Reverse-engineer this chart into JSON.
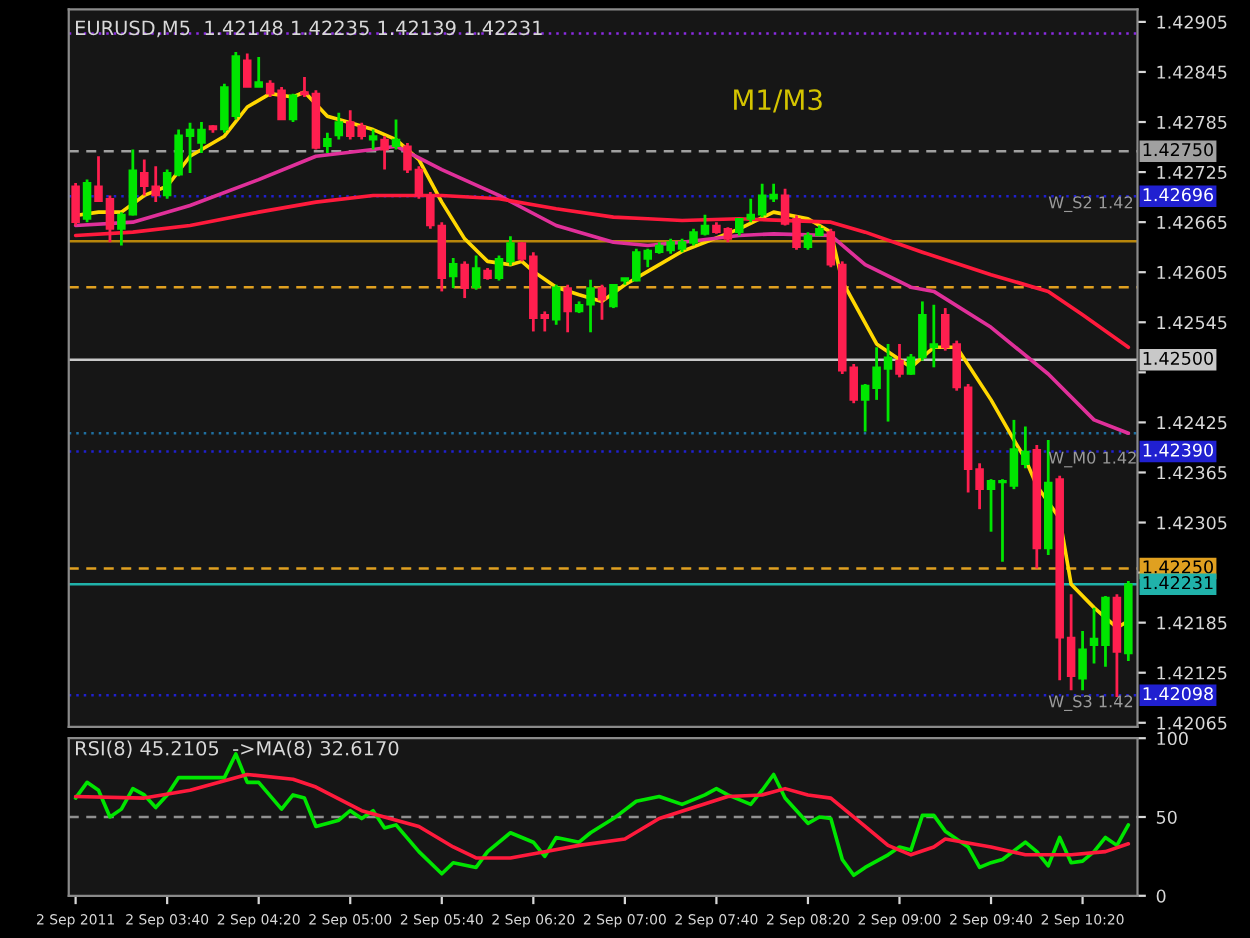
{
  "chart_data": [
    {
      "type": "candlestick",
      "title": "EURUSD,M5  1.42148 1.42235 1.42139 1.42231",
      "x": [
        "2011-09-02T03:00",
        "2011-09-02T03:05",
        "2011-09-02T03:10",
        "2011-09-02T03:15",
        "2011-09-02T03:20",
        "2011-09-02T03:25",
        "2011-09-02T03:30",
        "2011-09-02T03:35",
        "2011-09-02T03:40",
        "2011-09-02T03:45",
        "2011-09-02T03:50",
        "2011-09-02T03:55",
        "2011-09-02T04:00",
        "2011-09-02T04:05",
        "2011-09-02T04:10",
        "2011-09-02T04:15",
        "2011-09-02T04:20",
        "2011-09-02T04:25",
        "2011-09-02T04:30",
        "2011-09-02T04:35",
        "2011-09-02T04:40",
        "2011-09-02T04:45",
        "2011-09-02T04:50",
        "2011-09-02T04:55",
        "2011-09-02T05:00",
        "2011-09-02T05:05",
        "2011-09-02T05:10",
        "2011-09-02T05:15",
        "2011-09-02T05:20",
        "2011-09-02T05:25",
        "2011-09-02T05:30",
        "2011-09-02T05:35",
        "2011-09-02T05:40",
        "2011-09-02T05:45",
        "2011-09-02T05:50",
        "2011-09-02T05:55",
        "2011-09-02T06:00",
        "2011-09-02T06:05",
        "2011-09-02T06:10",
        "2011-09-02T06:15",
        "2011-09-02T06:20",
        "2011-09-02T06:25",
        "2011-09-02T06:30",
        "2011-09-02T06:35",
        "2011-09-02T06:40",
        "2011-09-02T06:45",
        "2011-09-02T06:50",
        "2011-09-02T06:55",
        "2011-09-02T07:00",
        "2011-09-02T07:05",
        "2011-09-02T07:10",
        "2011-09-02T07:15",
        "2011-09-02T07:20",
        "2011-09-02T07:25",
        "2011-09-02T07:30",
        "2011-09-02T07:35",
        "2011-09-02T07:40",
        "2011-09-02T07:45",
        "2011-09-02T07:50",
        "2011-09-02T07:55",
        "2011-09-02T08:00",
        "2011-09-02T08:05",
        "2011-09-02T08:10",
        "2011-09-02T08:15",
        "2011-09-02T08:20",
        "2011-09-02T08:25",
        "2011-09-02T08:30",
        "2011-09-02T08:35",
        "2011-09-02T08:40",
        "2011-09-02T08:45",
        "2011-09-02T08:50",
        "2011-09-02T08:55",
        "2011-09-02T09:00",
        "2011-09-02T09:05",
        "2011-09-02T09:10",
        "2011-09-02T09:15",
        "2011-09-02T09:20",
        "2011-09-02T09:25",
        "2011-09-02T09:30",
        "2011-09-02T09:35",
        "2011-09-02T09:40",
        "2011-09-02T09:45",
        "2011-09-02T09:50",
        "2011-09-02T09:55",
        "2011-09-02T10:00",
        "2011-09-02T10:05",
        "2011-09-02T10:10",
        "2011-09-02T10:15",
        "2011-09-02T10:20",
        "2011-09-02T10:25",
        "2011-09-02T10:30",
        "2011-09-02T10:35",
        "2011-09-02T10:40"
      ],
      "ohlc": [
        [
          1.42708,
          1.42712,
          1.42661,
          1.42665
        ],
        [
          1.42669,
          1.42716,
          1.42665,
          1.42712
        ],
        [
          1.42708,
          1.42744,
          1.4269,
          1.4269
        ],
        [
          1.42693,
          1.42697,
          1.42641,
          1.42657
        ],
        [
          1.42657,
          1.42677,
          1.42637,
          1.42674
        ],
        [
          1.42674,
          1.42752,
          1.42673,
          1.42727
        ],
        [
          1.42724,
          1.4274,
          1.42697,
          1.42708
        ],
        [
          1.42708,
          1.42732,
          1.42689,
          1.42697
        ],
        [
          1.42697,
          1.42728,
          1.42693,
          1.42724
        ],
        [
          1.42722,
          1.42776,
          1.4272,
          1.42769
        ],
        [
          1.42768,
          1.42784,
          1.42724,
          1.42776
        ],
        [
          1.4276,
          1.42785,
          1.42748,
          1.42776
        ],
        [
          1.4278,
          1.42781,
          1.42772,
          1.42776
        ],
        [
          1.42776,
          1.42831,
          1.42772,
          1.42827
        ],
        [
          1.42792,
          1.42869,
          1.42788,
          1.42864
        ],
        [
          1.42859,
          1.42867,
          1.42827,
          1.42827
        ],
        [
          1.42827,
          1.42863,
          1.42827,
          1.42833
        ],
        [
          1.42831,
          1.42835,
          1.42815,
          1.42819
        ],
        [
          1.42823,
          1.42827,
          1.42788,
          1.42788
        ],
        [
          1.42788,
          1.42819,
          1.42785,
          1.42817
        ],
        [
          1.42821,
          1.42839,
          1.42815,
          1.42818
        ],
        [
          1.42819,
          1.42823,
          1.42752,
          1.42754
        ],
        [
          1.42756,
          1.42772,
          1.42748,
          1.42765
        ],
        [
          1.42769,
          1.42796,
          1.42764,
          1.42785
        ],
        [
          1.42785,
          1.42799,
          1.42764,
          1.42768
        ],
        [
          1.4278,
          1.42784,
          1.42764,
          1.42768
        ],
        [
          1.42764,
          1.42776,
          1.42752,
          1.42768
        ],
        [
          1.42764,
          1.42768,
          1.42728,
          1.42752
        ],
        [
          1.42756,
          1.42788,
          1.42752,
          1.42764
        ],
        [
          1.42756,
          1.4276,
          1.42724,
          1.42728
        ],
        [
          1.42728,
          1.42732,
          1.42693,
          1.42697
        ],
        [
          1.42697,
          1.42701,
          1.42657,
          1.42661
        ],
        [
          1.42661,
          1.42665,
          1.42582,
          1.42598
        ],
        [
          1.426,
          1.42622,
          1.42586,
          1.42615
        ],
        [
          1.42614,
          1.42618,
          1.42574,
          1.42586
        ],
        [
          1.42587,
          1.42625,
          1.42584,
          1.4261
        ],
        [
          1.42607,
          1.4261,
          1.42596,
          1.42598
        ],
        [
          1.42598,
          1.42625,
          1.42595,
          1.42621
        ],
        [
          1.42618,
          1.42648,
          1.42613,
          1.4264
        ],
        [
          1.4264,
          1.42641,
          1.42618,
          1.42621
        ],
        [
          1.42624,
          1.42629,
          1.42534,
          1.4255
        ],
        [
          1.42554,
          1.42558,
          1.42534,
          1.4255
        ],
        [
          1.42548,
          1.4259,
          1.42542,
          1.42587
        ],
        [
          1.42586,
          1.4259,
          1.42533,
          1.42558
        ],
        [
          1.42558,
          1.4257,
          1.42556,
          1.42566
        ],
        [
          1.42566,
          1.42596,
          1.42533,
          1.42586
        ],
        [
          1.42586,
          1.4259,
          1.42548,
          1.42572
        ],
        [
          1.42564,
          1.4259,
          1.42562,
          1.4259
        ],
        [
          1.42595,
          1.42598,
          1.4259,
          1.42598
        ],
        [
          1.42595,
          1.42633,
          1.42594,
          1.42629
        ],
        [
          1.42621,
          1.42633,
          1.42611,
          1.42631
        ],
        [
          1.42629,
          1.42641,
          1.42627,
          1.42637
        ],
        [
          1.42631,
          1.42645,
          1.42627,
          1.42641
        ],
        [
          1.42633,
          1.42645,
          1.42629,
          1.42641
        ],
        [
          1.4264,
          1.42657,
          1.42637,
          1.42653
        ],
        [
          1.42651,
          1.42674,
          1.42649,
          1.42661
        ],
        [
          1.42661,
          1.42665,
          1.42651,
          1.42653
        ],
        [
          1.42657,
          1.42659,
          1.42641,
          1.42645
        ],
        [
          1.42653,
          1.42669,
          1.42649,
          1.42669
        ],
        [
          1.42669,
          1.42693,
          1.42665,
          1.42674
        ],
        [
          1.42674,
          1.42711,
          1.42671,
          1.42697
        ],
        [
          1.42693,
          1.42711,
          1.42689,
          1.42698
        ],
        [
          1.42697,
          1.42705,
          1.42661,
          1.42663
        ],
        [
          1.42669,
          1.42673,
          1.42632,
          1.42635
        ],
        [
          1.42635,
          1.42653,
          1.42632,
          1.42649
        ],
        [
          1.42649,
          1.42661,
          1.42648,
          1.42657
        ],
        [
          1.42653,
          1.42657,
          1.42611,
          1.42614
        ],
        [
          1.42614,
          1.42618,
          1.42483,
          1.42487
        ],
        [
          1.42491,
          1.42495,
          1.42448,
          1.42452
        ],
        [
          1.42452,
          1.42471,
          1.42414,
          1.42469
        ],
        [
          1.42466,
          1.42515,
          1.42452,
          1.42491
        ],
        [
          1.42489,
          1.42519,
          1.42426,
          1.42503
        ],
        [
          1.42499,
          1.42519,
          1.42479,
          1.42483
        ],
        [
          1.42483,
          1.42507,
          1.42482,
          1.42503
        ],
        [
          1.42503,
          1.4257,
          1.42499,
          1.42554
        ],
        [
          1.42515,
          1.42566,
          1.42491,
          1.42519
        ],
        [
          1.42554,
          1.42562,
          1.42511,
          1.42515
        ],
        [
          1.42519,
          1.42523,
          1.42463,
          1.42467
        ],
        [
          1.42467,
          1.42471,
          1.42341,
          1.42369
        ],
        [
          1.42369,
          1.42376,
          1.42321,
          1.42345
        ],
        [
          1.42345,
          1.42357,
          1.42294,
          1.42355
        ],
        [
          1.42353,
          1.42357,
          1.42258,
          1.42355
        ],
        [
          1.42349,
          1.42428,
          1.42345,
          1.42393
        ],
        [
          1.42375,
          1.4242,
          1.4237,
          1.4239
        ],
        [
          1.42392,
          1.42398,
          1.4225,
          1.42274
        ],
        [
          1.42274,
          1.42404,
          1.42266,
          1.42353
        ],
        [
          1.42357,
          1.42361,
          1.42116,
          1.42167
        ],
        [
          1.42167,
          1.42219,
          1.42104,
          1.42121
        ],
        [
          1.42118,
          1.42175,
          1.42104,
          1.42153
        ],
        [
          1.42158,
          1.42203,
          1.42136,
          1.42166
        ],
        [
          1.42158,
          1.42217,
          1.42132,
          1.42215
        ],
        [
          1.42215,
          1.42219,
          1.42096,
          1.4215
        ],
        [
          1.42148,
          1.42235,
          1.42139,
          1.42231
        ]
      ],
      "colors": [
        "#ff1f4f",
        "#00e600",
        "#ff1f4f",
        "#ff1f4f",
        "#00e600",
        "#00e600",
        "#ff1f4f",
        "#ff1f4f",
        "#00e600",
        "#00e600",
        "#00e600",
        "#00e600",
        "#ff1f4f",
        "#00e600",
        "#00e600",
        "#ff1f4f",
        "#00e600",
        "#ff1f4f",
        "#ff1f4f",
        "#00e600",
        "#ff1f4f",
        "#ff1f4f",
        "#00e600",
        "#00e600",
        "#ff1f4f",
        "#ff1f4f",
        "#00e600",
        "#ff1f4f",
        "#00e600",
        "#ff1f4f",
        "#ff1f4f",
        "#ff1f4f",
        "#ff1f4f",
        "#00e600",
        "#ff1f4f",
        "#00e600",
        "#ff1f4f",
        "#00e600",
        "#00e600",
        "#ff1f4f",
        "#ff1f4f",
        "#ff1f4f",
        "#00e600",
        "#ff1f4f",
        "#00e600",
        "#00e600",
        "#ff1f4f",
        "#00e600",
        "#00e600",
        "#00e600",
        "#00e600",
        "#00e600",
        "#00e600",
        "#00e600",
        "#00e600",
        "#00e600",
        "#ff1f4f",
        "#ff1f4f",
        "#00e600",
        "#00e600",
        "#00e600",
        "#00e600",
        "#ff1f4f",
        "#ff1f4f",
        "#00e600",
        "#00e600",
        "#ff1f4f",
        "#ff1f4f",
        "#ff1f4f",
        "#00e600",
        "#00e600",
        "#00e600",
        "#ff1f4f",
        "#00e600",
        "#00e600",
        "#00e600",
        "#ff1f4f",
        "#ff1f4f",
        "#ff1f4f",
        "#ff1f4f",
        "#00e600",
        "#00e600",
        "#00e600",
        "#00e600",
        "#ff1f4f",
        "#00e600",
        "#ff1f4f",
        "#ff1f4f",
        "#00e600",
        "#00e600",
        "#00e600",
        "#ff1f4f",
        "#00e600"
      ],
      "series": [
        {
          "type": "line",
          "color": "#ffd700",
          "x": [
            "2011-09-02T03:00",
            "2011-09-02T03:10",
            "2011-09-02T03:20",
            "2011-09-02T03:30",
            "2011-09-02T03:40",
            "2011-09-02T03:50",
            "2011-09-02T04:05",
            "2011-09-02T04:15",
            "2011-09-02T04:25",
            "2011-09-02T04:35",
            "2011-09-02T04:40",
            "2011-09-02T04:50",
            "2011-09-02T05:00",
            "2011-09-02T05:10",
            "2011-09-02T05:20",
            "2011-09-02T05:30",
            "2011-09-02T05:40",
            "2011-09-02T05:50",
            "2011-09-02T06:00",
            "2011-09-02T06:10",
            "2011-09-02T06:15",
            "2011-09-02T06:20",
            "2011-09-02T06:30",
            "2011-09-02T06:40",
            "2011-09-02T06:50",
            "2011-09-02T07:00",
            "2011-09-02T07:10",
            "2011-09-02T07:25",
            "2011-09-02T07:50",
            "2011-09-02T08:05",
            "2011-09-02T08:20",
            "2011-09-02T08:30",
            "2011-09-02T08:35",
            "2011-09-02T08:50",
            "2011-09-02T09:05",
            "2011-09-02T09:15",
            "2011-09-02T09:25",
            "2011-09-02T09:40",
            "2011-09-02T09:50",
            "2011-09-02T09:55",
            "2011-09-02T10:00",
            "2011-09-02T10:10",
            "2011-09-02T10:15",
            "2011-09-02T10:25",
            "2011-09-02T10:35",
            "2011-09-02T10:40"
          ],
          "values": [
            1.42673,
            1.42677,
            1.42677,
            1.42697,
            1.42708,
            1.42744,
            1.42768,
            1.42803,
            1.42819,
            1.42815,
            1.42821,
            1.42792,
            1.42784,
            1.42776,
            1.42764,
            1.4274,
            1.42689,
            1.42645,
            1.42618,
            1.42614,
            1.42618,
            1.42606,
            1.42587,
            1.42578,
            1.4257,
            1.4259,
            1.42606,
            1.4263,
            1.42657,
            1.42677,
            1.42669,
            1.42653,
            1.42594,
            1.42519,
            1.42491,
            1.42515,
            1.42515,
            1.42452,
            1.42404,
            1.42381,
            1.42349,
            1.4231,
            1.42231,
            1.42203,
            1.42179,
            1.42187
          ]
        },
        {
          "type": "line",
          "color": "#e0309a",
          "x": [
            "2011-09-02T03:00",
            "2011-09-02T03:25",
            "2011-09-02T03:50",
            "2011-09-02T04:20",
            "2011-09-02T04:45",
            "2011-09-02T05:10",
            "2011-09-02T05:20",
            "2011-09-02T05:40",
            "2011-09-02T06:05",
            "2011-09-02T06:30",
            "2011-09-02T06:55",
            "2011-09-02T07:10",
            "2011-09-02T07:25",
            "2011-09-02T07:50",
            "2011-09-02T08:05",
            "2011-09-02T08:30",
            "2011-09-02T08:45",
            "2011-09-02T09:05",
            "2011-09-02T09:15",
            "2011-09-02T09:40",
            "2011-09-02T10:05",
            "2011-09-02T10:25",
            "2011-09-02T10:40"
          ],
          "values": [
            1.42661,
            1.42665,
            1.42685,
            1.42716,
            1.42744,
            1.42752,
            1.42756,
            1.42728,
            1.42697,
            1.42661,
            1.42641,
            1.42637,
            1.42641,
            1.42649,
            1.42651,
            1.42649,
            1.42614,
            1.42587,
            1.42582,
            1.42539,
            1.42483,
            1.42428,
            1.42412
          ]
        },
        {
          "type": "line",
          "color": "#ff1a3c",
          "x": [
            "2011-09-02T03:00",
            "2011-09-02T03:25",
            "2011-09-02T03:50",
            "2011-09-02T04:20",
            "2011-09-02T04:45",
            "2011-09-02T05:10",
            "2011-09-02T05:40",
            "2011-09-02T06:05",
            "2011-09-02T06:30",
            "2011-09-02T06:55",
            "2011-09-02T07:10",
            "2011-09-02T07:25",
            "2011-09-02T07:50",
            "2011-09-02T08:30",
            "2011-09-02T08:45",
            "2011-09-02T09:10",
            "2011-09-02T09:40",
            "2011-09-02T10:05",
            "2011-09-02T10:20",
            "2011-09-02T10:40"
          ],
          "values": [
            1.42649,
            1.42653,
            1.42661,
            1.42677,
            1.42689,
            1.42697,
            1.42697,
            1.42693,
            1.42681,
            1.42671,
            1.42669,
            1.42667,
            1.42669,
            1.42665,
            1.42653,
            1.42629,
            1.42602,
            1.42582,
            1.42554,
            1.42515
          ]
        }
      ],
      "ref_lines": [
        {
          "axis": "y",
          "value": 1.42891,
          "color": "#8a2be2",
          "line_style": "dotted"
        },
        {
          "axis": "y",
          "value": 1.4275,
          "label": "1.42750",
          "color": "#a0a0a0",
          "line_style": "dashed"
        },
        {
          "axis": "y",
          "value": 1.42696,
          "label": "1.42696",
          "color": "#2020d0",
          "line_style": "dotted"
        },
        {
          "axis": "y",
          "value": 1.42642,
          "color": "#b8860b",
          "line_style": "solid"
        },
        {
          "axis": "y",
          "value": 1.42587,
          "color": "#e0a020",
          "line_style": "dashed"
        },
        {
          "axis": "y",
          "value": 1.425,
          "label": "1.42500",
          "color": "#c8c8c8",
          "line_style": "solid"
        },
        {
          "axis": "y",
          "value": 1.42412,
          "color": "#1f6fa0",
          "line_style": "dotted"
        },
        {
          "axis": "y",
          "value": 1.4239,
          "label": "1.42390",
          "color": "#2020d0",
          "line_style": "dotted"
        },
        {
          "axis": "y",
          "value": 1.4225,
          "label": "1.42250",
          "color": "#e0a020",
          "line_style": "dashed"
        },
        {
          "axis": "y",
          "value": 1.42231,
          "label": "1.42231",
          "color": "#20b2aa",
          "line_style": "solid"
        },
        {
          "axis": "y",
          "value": 1.42098,
          "label": "1.42098",
          "color": "#2020d0",
          "line_style": "dotted"
        }
      ],
      "annotations": [
        "M1/M3",
        {
          "text": "W_S2 1.42",
          "x": "2011-09-02T10:05",
          "y": 1.42696
        },
        {
          "text": "W_M0 1.42",
          "x": "2011-09-02T10:05",
          "y": 1.4239
        },
        {
          "text": "W_S3 1.42",
          "x": "2011-09-02T10:05",
          "y": 1.42098
        }
      ],
      "xlim": [
        "2011-09-02T02:57",
        "2011-09-02T10:44"
      ],
      "ylim": [
        1.4206,
        1.4292
      ],
      "yticks": [
        1.42905,
        1.42845,
        1.42785,
        1.42725,
        1.42665,
        1.42605,
        1.42545,
        {
          "value": 1.42485,
          "label": null
        },
        1.42425,
        1.42365,
        1.42305,
        {
          "value": 1.42245,
          "label": null
        },
        1.42185,
        1.42125,
        1.42065
      ],
      "tick_labels": "y"
    },
    {
      "type": "line",
      "title": "RSI(8) 45.2105  ->MA(8) 32.6170",
      "series": [
        {
          "color": "#00e600",
          "x": [
            "2011-09-02T03:00",
            "2011-09-02T03:05",
            "2011-09-02T03:10",
            "2011-09-02T03:15",
            "2011-09-02T03:20",
            "2011-09-02T03:25",
            "2011-09-02T03:30",
            "2011-09-02T03:35",
            "2011-09-02T03:40",
            "2011-09-02T03:45",
            "2011-09-02T03:55",
            "2011-09-02T04:05",
            "2011-09-02T04:10",
            "2011-09-02T04:15",
            "2011-09-02T04:20",
            "2011-09-02T04:30",
            "2011-09-02T04:35",
            "2011-09-02T04:40",
            "2011-09-02T04:45",
            "2011-09-02T04:55",
            "2011-09-02T05:00",
            "2011-09-02T05:05",
            "2011-09-02T05:10",
            "2011-09-02T05:15",
            "2011-09-02T05:20",
            "2011-09-02T05:30",
            "2011-09-02T05:40",
            "2011-09-02T05:45",
            "2011-09-02T05:55",
            "2011-09-02T06:00",
            "2011-09-02T06:10",
            "2011-09-02T06:20",
            "2011-09-02T06:25",
            "2011-09-02T06:30",
            "2011-09-02T06:40",
            "2011-09-02T06:45",
            "2011-09-02T06:55",
            "2011-09-02T07:05",
            "2011-09-02T07:15",
            "2011-09-02T07:25",
            "2011-09-02T07:35",
            "2011-09-02T07:40",
            "2011-09-02T07:45",
            "2011-09-02T07:55",
            "2011-09-02T08:00",
            "2011-09-02T08:05",
            "2011-09-02T08:10",
            "2011-09-02T08:20",
            "2011-09-02T08:25",
            "2011-09-02T08:30",
            "2011-09-02T08:35",
            "2011-09-02T08:40",
            "2011-09-02T08:45",
            "2011-09-02T08:55",
            "2011-09-02T09:00",
            "2011-09-02T09:05",
            "2011-09-02T09:10",
            "2011-09-02T09:15",
            "2011-09-02T09:20",
            "2011-09-02T09:30",
            "2011-09-02T09:35",
            "2011-09-02T09:40",
            "2011-09-02T09:45",
            "2011-09-02T09:55",
            "2011-09-02T10:00",
            "2011-09-02T10:05",
            "2011-09-02T10:10",
            "2011-09-02T10:15",
            "2011-09-02T10:20",
            "2011-09-02T10:25",
            "2011-09-02T10:30",
            "2011-09-02T10:35",
            "2011-09-02T10:40"
          ],
          "values": [
            62,
            72,
            67,
            50,
            55,
            68,
            64,
            56,
            64,
            75,
            75,
            75,
            90,
            72,
            72,
            55,
            64,
            62,
            44,
            48,
            54,
            49,
            54,
            43,
            45,
            28,
            14,
            21,
            18,
            28,
            40,
            34,
            25,
            37,
            34,
            40,
            49,
            60,
            63,
            58,
            64,
            68,
            64,
            58,
            67,
            77,
            62,
            46,
            50,
            49,
            23,
            13,
            18,
            26,
            31,
            29,
            51,
            51,
            41,
            31,
            18,
            21,
            23,
            34,
            28,
            19,
            37,
            21,
            22,
            28,
            37,
            32,
            45
          ]
        },
        {
          "color": "#ff1a3c",
          "x": [
            "2011-09-02T03:00",
            "2011-09-02T03:30",
            "2011-09-02T03:50",
            "2011-09-02T04:15",
            "2011-09-02T04:35",
            "2011-09-02T04:45",
            "2011-09-02T05:05",
            "2011-09-02T05:30",
            "2011-09-02T05:45",
            "2011-09-02T05:55",
            "2011-09-02T06:10",
            "2011-09-02T06:25",
            "2011-09-02T06:40",
            "2011-09-02T07:00",
            "2011-09-02T07:15",
            "2011-09-02T07:30",
            "2011-09-02T07:45",
            "2011-09-02T08:00",
            "2011-09-02T08:10",
            "2011-09-02T08:20",
            "2011-09-02T08:30",
            "2011-09-02T08:45",
            "2011-09-02T08:55",
            "2011-09-02T09:05",
            "2011-09-02T09:15",
            "2011-09-02T09:20",
            "2011-09-02T09:40",
            "2011-09-02T09:55",
            "2011-09-02T10:15",
            "2011-09-02T10:30",
            "2011-09-02T10:40"
          ],
          "values": [
            63,
            62,
            67,
            77,
            74,
            69,
            54,
            44,
            31,
            24,
            24,
            28,
            32,
            36,
            49,
            56,
            63,
            64,
            68,
            64,
            62,
            44,
            32,
            26,
            31,
            36,
            31,
            26,
            26,
            28,
            33
          ]
        }
      ],
      "ref_lines": [
        {
          "axis": "y",
          "value": 50,
          "color": "#909090",
          "line_style": "dashed"
        }
      ],
      "xlim": [
        "2011-09-02T02:57",
        "2011-09-02T10:44"
      ],
      "ylim": [
        0,
        100
      ],
      "yticks": [
        0,
        50,
        100
      ],
      "xticks": [
        {
          "value": "2011-09-02T03:00",
          "label": "2 Sep 2011"
        },
        {
          "value": "2011-09-02T03:40",
          "label": "2 Sep 03:40"
        },
        {
          "value": "2011-09-02T04:20",
          "label": "2 Sep 04:20"
        },
        {
          "value": "2011-09-02T05:00",
          "label": "2 Sep 05:00"
        },
        {
          "value": "2011-09-02T05:40",
          "label": "2 Sep 05:40"
        },
        {
          "value": "2011-09-02T06:20",
          "label": "2 Sep 06:20"
        },
        {
          "value": "2011-09-02T07:00",
          "label": "2 Sep 07:00"
        },
        {
          "value": "2011-09-02T07:40",
          "label": "2 Sep 07:40"
        },
        {
          "value": "2011-09-02T08:20",
          "label": "2 Sep 08:20"
        },
        {
          "value": "2011-09-02T09:00",
          "label": "2 Sep 09:00"
        },
        {
          "value": "2011-09-02T09:40",
          "label": "2 Sep 09:40"
        },
        {
          "value": "2011-09-02T10:20",
          "label": "2 Sep 10:20"
        }
      ]
    }
  ]
}
